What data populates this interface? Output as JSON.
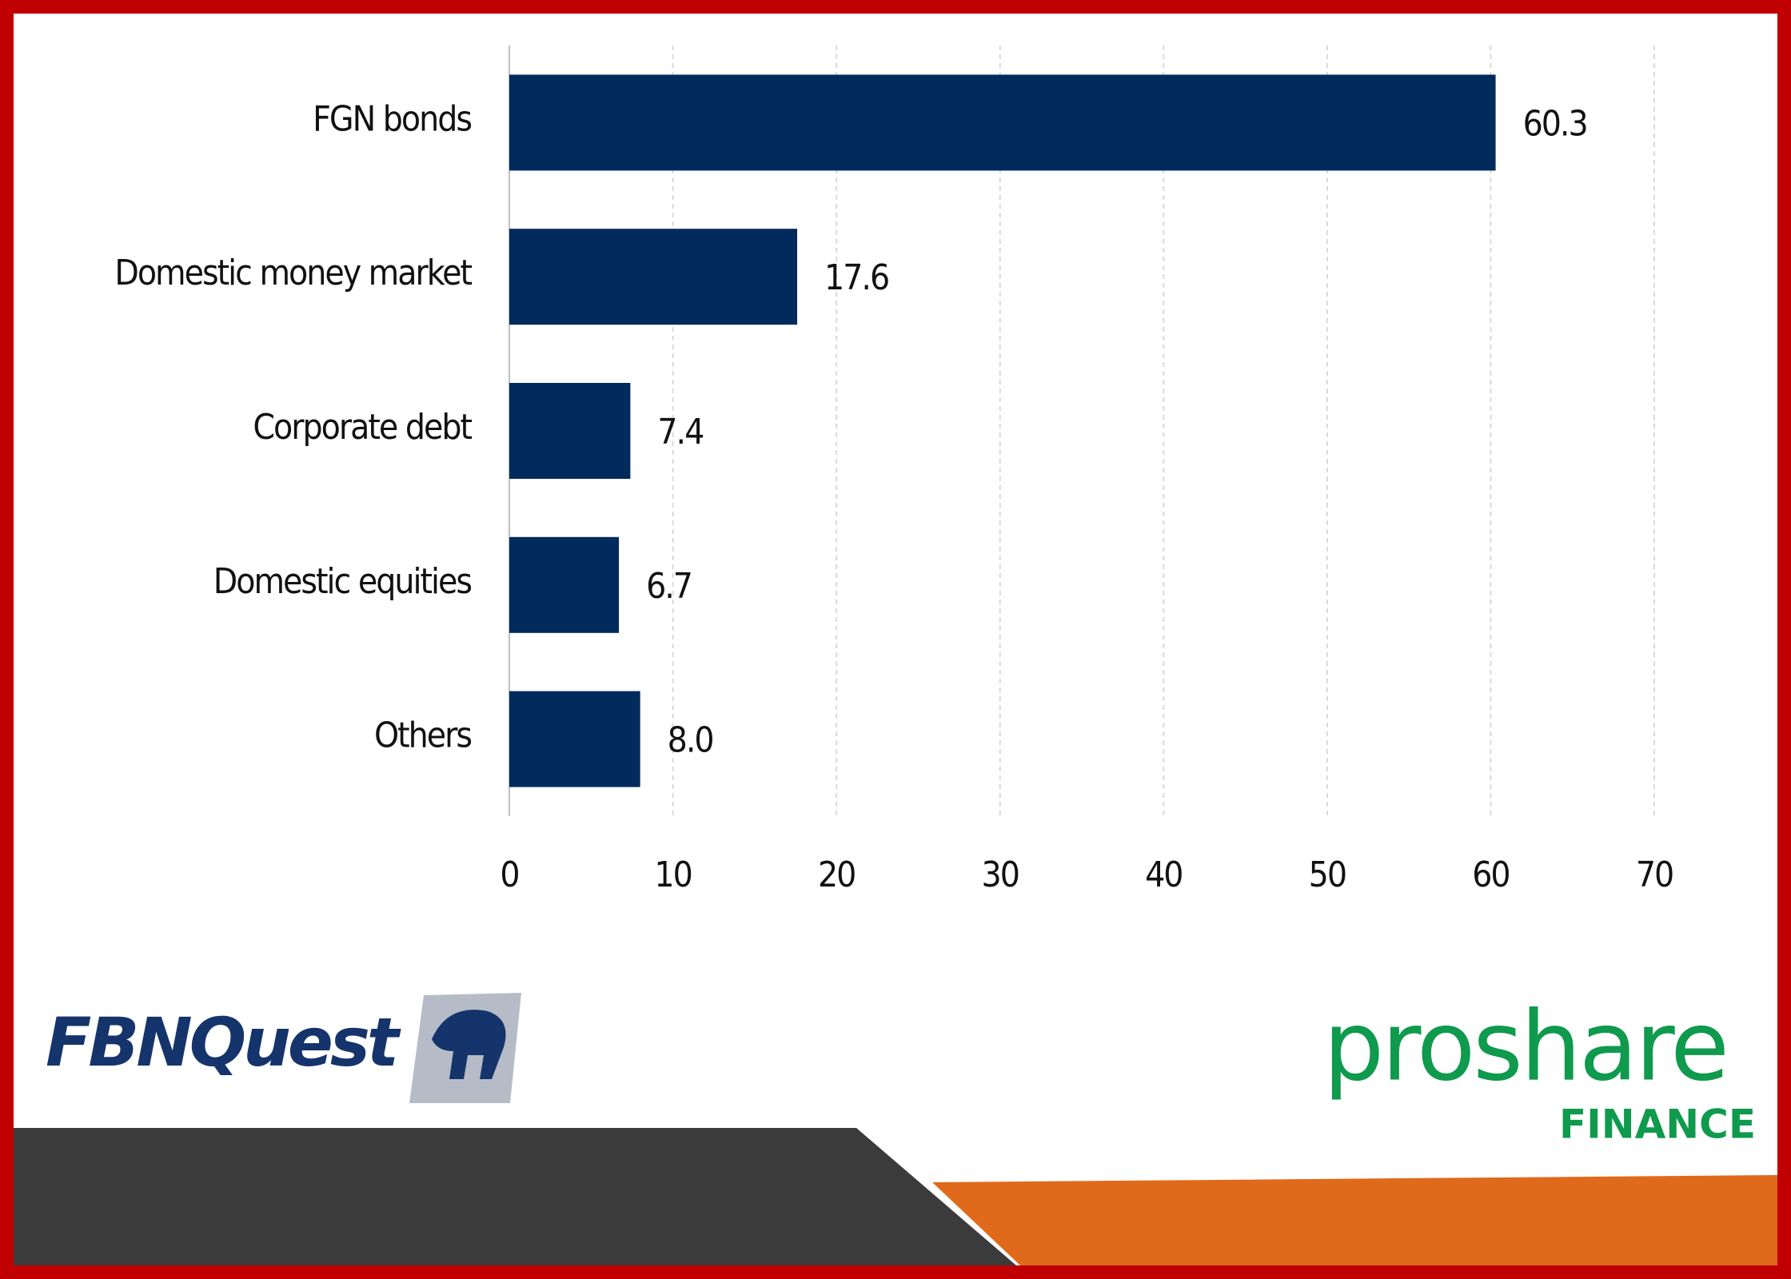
{
  "chart_data": {
    "type": "barh",
    "categories": [
      "FGN bonds",
      "Domestic money market",
      "Corporate debt",
      "Domestic equities",
      "Others"
    ],
    "values": [
      60.3,
      17.6,
      7.4,
      6.7,
      8.0
    ],
    "value_labels": [
      "60.3",
      "17.6",
      "7.4",
      "6.7",
      "8.0"
    ],
    "color": "#002b5c",
    "xlim": [
      0,
      70
    ],
    "xticks": [
      0,
      10,
      20,
      30,
      40,
      50,
      60,
      70
    ],
    "grid": true
  },
  "branding": {
    "left_logo": "FBNQuest",
    "right_logo": "proshare",
    "right_logo_sub": "FINANCE"
  }
}
